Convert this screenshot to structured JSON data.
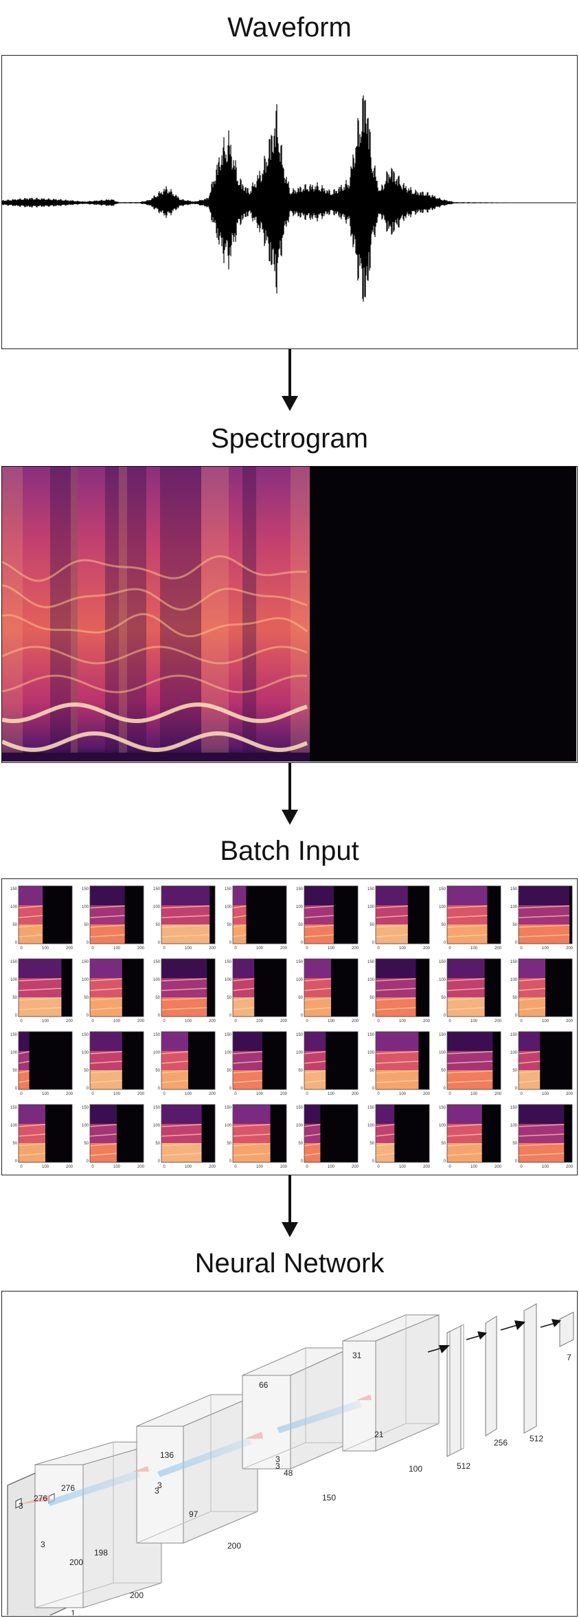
{
  "sections": [
    {
      "title": "Waveform"
    },
    {
      "title": "Spectrogram"
    },
    {
      "title": "Batch Input"
    },
    {
      "title": "Neural Network"
    }
  ],
  "batch": {
    "rows": 4,
    "cols": 8,
    "x_ticks": [
      "0",
      "100",
      "200"
    ],
    "y_ticks": [
      "150",
      "100",
      "50",
      "0"
    ]
  },
  "network": {
    "layers": [
      {
        "name": "input",
        "labels": [
          "276",
          "200",
          "1"
        ]
      },
      {
        "name": "conv1",
        "labels": [
          "276",
          "198",
          "200",
          "3",
          "3"
        ]
      },
      {
        "name": "conv2",
        "labels": [
          "136",
          "97",
          "200",
          "3",
          "3"
        ]
      },
      {
        "name": "conv3",
        "labels": [
          "66",
          "48",
          "150",
          "3",
          "3"
        ]
      },
      {
        "name": "conv4",
        "labels": [
          "31",
          "21",
          "100"
        ]
      },
      {
        "name": "dense1",
        "label": "512"
      },
      {
        "name": "dense2",
        "label": "256"
      },
      {
        "name": "dense3",
        "label": "512"
      },
      {
        "name": "output",
        "label": "7"
      }
    ]
  }
}
